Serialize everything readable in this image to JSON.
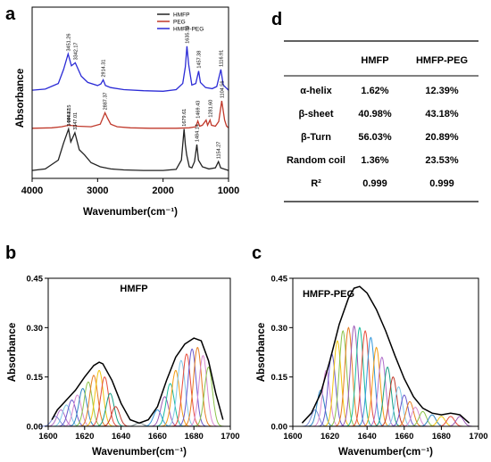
{
  "panels": {
    "a": {
      "letter": "a"
    },
    "b": {
      "letter": "b"
    },
    "c": {
      "letter": "c"
    },
    "d": {
      "letter": "d"
    }
  },
  "table": {
    "columns": [
      "",
      "HMFP",
      "HMFP-PEG"
    ],
    "rows": [
      [
        "α-helix",
        "1.62%",
        "12.39%"
      ],
      [
        "β-sheet",
        "40.98%",
        "43.18%"
      ],
      [
        "β-Turn",
        "56.03%",
        "20.89%"
      ],
      [
        "Random coil",
        "1.36%",
        "23.53%"
      ],
      [
        "R²",
        "0.999",
        "0.999"
      ]
    ]
  },
  "chart_data": [
    {
      "panel": "a",
      "type": "line",
      "xlabel": "Wavenumber(cm⁻¹)",
      "ylabel": "Absorbance",
      "xlim": [
        4000,
        1000
      ],
      "x_reversed": true,
      "xticks": [
        4000,
        3000,
        2000,
        1000
      ],
      "yticks": [],
      "legend": {
        "placement": "top-right",
        "entries": [
          "HMFP",
          "PEG",
          "HMFP-PEG"
        ]
      },
      "series": [
        {
          "name": "HMFP-PEG",
          "color": "#2b2bd6",
          "offset": 2.0,
          "x": [
            4000,
            3800,
            3600,
            3520,
            3451,
            3400,
            3342,
            3250,
            3150,
            3000,
            2950,
            2914,
            2880,
            2800,
            2600,
            2300,
            2000,
            1800,
            1700,
            1660,
            1635,
            1610,
            1560,
            1500,
            1457,
            1430,
            1350,
            1250,
            1180,
            1117,
            1080,
            1000
          ],
          "y": [
            0.05,
            0.07,
            0.18,
            0.45,
            0.75,
            0.52,
            0.58,
            0.32,
            0.2,
            0.14,
            0.17,
            0.25,
            0.14,
            0.1,
            0.06,
            0.04,
            0.03,
            0.06,
            0.18,
            0.5,
            0.9,
            0.55,
            0.15,
            0.18,
            0.42,
            0.2,
            0.1,
            0.08,
            0.12,
            0.45,
            0.15,
            0.05
          ]
        },
        {
          "name": "PEG",
          "color": "#c0392b",
          "offset": 1.0,
          "x": [
            4000,
            3700,
            3550,
            3441,
            3300,
            3100,
            2960,
            2900,
            2887,
            2850,
            2800,
            2700,
            2500,
            2200,
            1800,
            1600,
            1500,
            1469,
            1440,
            1400,
            1342,
            1320,
            1282,
            1260,
            1200,
            1150,
            1104,
            1060,
            1030,
            1000
          ],
          "y": [
            0.02,
            0.03,
            0.05,
            0.08,
            0.06,
            0.05,
            0.1,
            0.28,
            0.32,
            0.22,
            0.1,
            0.05,
            0.03,
            0.02,
            0.02,
            0.03,
            0.05,
            0.16,
            0.06,
            0.08,
            0.18,
            0.08,
            0.18,
            0.08,
            0.06,
            0.15,
            0.55,
            0.18,
            0.06,
            0.03
          ]
        },
        {
          "name": "HMFP",
          "color": "#222222",
          "offset": 0.0,
          "x": [
            4000,
            3800,
            3600,
            3520,
            3444,
            3410,
            3347,
            3280,
            3200,
            3100,
            2960,
            2800,
            2600,
            2300,
            2000,
            1800,
            1720,
            1679,
            1660,
            1640,
            1600,
            1560,
            1520,
            1484,
            1460,
            1400,
            1300,
            1200,
            1154,
            1120,
            1000
          ],
          "y": [
            0.05,
            0.08,
            0.25,
            0.58,
            0.85,
            0.6,
            0.78,
            0.45,
            0.35,
            0.2,
            0.12,
            0.08,
            0.06,
            0.05,
            0.05,
            0.07,
            0.25,
            0.85,
            0.55,
            0.35,
            0.12,
            0.1,
            0.22,
            0.55,
            0.25,
            0.12,
            0.08,
            0.1,
            0.22,
            0.1,
            0.05
          ]
        }
      ],
      "annotations": [
        {
          "text": "3451.26",
          "x": 3451,
          "series": "HMFP-PEG"
        },
        {
          "text": "3342.17",
          "x": 3342,
          "series": "HMFP-PEG"
        },
        {
          "text": "2914.31",
          "x": 2914,
          "series": "HMFP-PEG"
        },
        {
          "text": "1635.33",
          "x": 1635,
          "series": "HMFP-PEG"
        },
        {
          "text": "1457.38",
          "x": 1457,
          "series": "HMFP-PEG"
        },
        {
          "text": "1116.91",
          "x": 1117,
          "series": "HMFP-PEG"
        },
        {
          "text": "3441.15",
          "x": 3441,
          "series": "PEG"
        },
        {
          "text": "2887.37",
          "x": 2887,
          "series": "PEG"
        },
        {
          "text": "1469.43",
          "x": 1469,
          "series": "PEG"
        },
        {
          "text": "1281.60",
          "x": 1282,
          "series": "PEG"
        },
        {
          "text": "1104.56",
          "x": 1104,
          "series": "PEG"
        },
        {
          "text": "3444.47",
          "x": 3444,
          "series": "HMFP"
        },
        {
          "text": "3347.01",
          "x": 3347,
          "series": "HMFP"
        },
        {
          "text": "1679.61",
          "x": 1679,
          "series": "HMFP"
        },
        {
          "text": "1484.14",
          "x": 1484,
          "series": "HMFP"
        },
        {
          "text": "1154.27",
          "x": 1154,
          "series": "HMFP"
        }
      ]
    },
    {
      "panel": "b",
      "type": "line",
      "title": "HMFP",
      "xlabel": "Wavenumber(cm⁻¹)",
      "ylabel": "Absorbance",
      "xlim": [
        1600,
        1700
      ],
      "ylim": [
        0,
        0.45
      ],
      "xticks": [
        1600,
        1620,
        1640,
        1660,
        1680,
        1700
      ],
      "yticks": [
        "0.00",
        "0.15",
        "0.30",
        "0.45"
      ],
      "envelope": {
        "x": [
          1602,
          1605,
          1610,
          1615,
          1620,
          1625,
          1628,
          1630,
          1635,
          1640,
          1645,
          1650,
          1655,
          1660,
          1665,
          1670,
          1675,
          1680,
          1684,
          1688,
          1692,
          1696
        ],
        "y": [
          0.02,
          0.05,
          0.08,
          0.11,
          0.15,
          0.185,
          0.195,
          0.19,
          0.14,
          0.07,
          0.02,
          0.01,
          0.02,
          0.06,
          0.14,
          0.21,
          0.25,
          0.268,
          0.26,
          0.2,
          0.1,
          0.02
        ]
      },
      "components": [
        {
          "center": 1604,
          "height": 0.03,
          "width": 2.2,
          "color": "#7a8dd6"
        },
        {
          "center": 1607,
          "height": 0.05,
          "width": 2.2,
          "color": "#b06ec9"
        },
        {
          "center": 1610,
          "height": 0.065,
          "width": 2.2,
          "color": "#7fc8e8"
        },
        {
          "center": 1613,
          "height": 0.08,
          "width": 2.2,
          "color": "#6a5acd"
        },
        {
          "center": 1616,
          "height": 0.095,
          "width": 2.2,
          "color": "#d98ad0"
        },
        {
          "center": 1619,
          "height": 0.115,
          "width": 2.2,
          "color": "#2e86c1"
        },
        {
          "center": 1622,
          "height": 0.135,
          "width": 2.2,
          "color": "#8bc34a"
        },
        {
          "center": 1625,
          "height": 0.155,
          "width": 2.2,
          "color": "#e67e22"
        },
        {
          "center": 1628,
          "height": 0.17,
          "width": 2.2,
          "color": "#f1c40f"
        },
        {
          "center": 1631,
          "height": 0.15,
          "width": 2.2,
          "color": "#e74c3c"
        },
        {
          "center": 1634,
          "height": 0.1,
          "width": 2.2,
          "color": "#16a085"
        },
        {
          "center": 1637,
          "height": 0.06,
          "width": 2.2,
          "color": "#c0392b"
        },
        {
          "center": 1650,
          "height": 0.01,
          "width": 2.2,
          "color": "#7f8c8d"
        },
        {
          "center": 1660,
          "height": 0.05,
          "width": 2.2,
          "color": "#3498db"
        },
        {
          "center": 1664,
          "height": 0.09,
          "width": 2.2,
          "color": "#9b59b6"
        },
        {
          "center": 1667,
          "height": 0.13,
          "width": 2.2,
          "color": "#1abc9c"
        },
        {
          "center": 1670,
          "height": 0.17,
          "width": 2.2,
          "color": "#f39c12"
        },
        {
          "center": 1673,
          "height": 0.2,
          "width": 2.2,
          "color": "#7fc8e8"
        },
        {
          "center": 1676,
          "height": 0.22,
          "width": 2.2,
          "color": "#e74c3c"
        },
        {
          "center": 1679,
          "height": 0.235,
          "width": 2.2,
          "color": "#6a5acd"
        },
        {
          "center": 1682,
          "height": 0.24,
          "width": 2.2,
          "color": "#e67e22"
        },
        {
          "center": 1685,
          "height": 0.215,
          "width": 2.2,
          "color": "#d98ad0"
        },
        {
          "center": 1688,
          "height": 0.18,
          "width": 2.2,
          "color": "#8bc34a"
        }
      ]
    },
    {
      "panel": "c",
      "type": "line",
      "title": "HMFP-PEG",
      "xlabel": "Wavenumber(cm⁻¹)",
      "ylabel": "Absorbance",
      "xlim": [
        1600,
        1700
      ],
      "ylim": [
        0,
        0.45
      ],
      "xticks": [
        1600,
        1620,
        1640,
        1660,
        1680,
        1700
      ],
      "yticks": [
        "0.00",
        "0.15",
        "0.30",
        "0.45"
      ],
      "envelope": {
        "x": [
          1605,
          1610,
          1615,
          1620,
          1625,
          1630,
          1633,
          1636,
          1640,
          1645,
          1650,
          1655,
          1660,
          1665,
          1670,
          1675,
          1680,
          1685,
          1690,
          1695
        ],
        "y": [
          0.01,
          0.04,
          0.1,
          0.2,
          0.31,
          0.39,
          0.42,
          0.425,
          0.405,
          0.355,
          0.29,
          0.215,
          0.145,
          0.09,
          0.055,
          0.04,
          0.035,
          0.04,
          0.035,
          0.01
        ]
      },
      "components": [
        {
          "center": 1612,
          "height": 0.05,
          "width": 2.0,
          "color": "#7a8dd6"
        },
        {
          "center": 1615,
          "height": 0.11,
          "width": 2.0,
          "color": "#2e86c1"
        },
        {
          "center": 1618,
          "height": 0.17,
          "width": 2.0,
          "color": "#d98ad0"
        },
        {
          "center": 1621,
          "height": 0.22,
          "width": 2.0,
          "color": "#6a5acd"
        },
        {
          "center": 1624,
          "height": 0.26,
          "width": 2.0,
          "color": "#f1c40f"
        },
        {
          "center": 1627,
          "height": 0.29,
          "width": 2.0,
          "color": "#8bc34a"
        },
        {
          "center": 1630,
          "height": 0.3,
          "width": 2.0,
          "color": "#e67e22"
        },
        {
          "center": 1633,
          "height": 0.305,
          "width": 2.0,
          "color": "#9b59b6"
        },
        {
          "center": 1636,
          "height": 0.3,
          "width": 2.0,
          "color": "#1abc9c"
        },
        {
          "center": 1639,
          "height": 0.29,
          "width": 2.0,
          "color": "#e74c3c"
        },
        {
          "center": 1642,
          "height": 0.27,
          "width": 2.0,
          "color": "#3498db"
        },
        {
          "center": 1645,
          "height": 0.24,
          "width": 2.0,
          "color": "#f39c12"
        },
        {
          "center": 1648,
          "height": 0.21,
          "width": 2.0,
          "color": "#b06ec9"
        },
        {
          "center": 1651,
          "height": 0.18,
          "width": 2.0,
          "color": "#16a085"
        },
        {
          "center": 1654,
          "height": 0.15,
          "width": 2.0,
          "color": "#c0392b"
        },
        {
          "center": 1657,
          "height": 0.12,
          "width": 2.0,
          "color": "#7fc8e8"
        },
        {
          "center": 1660,
          "height": 0.095,
          "width": 2.0,
          "color": "#6a5acd"
        },
        {
          "center": 1663,
          "height": 0.075,
          "width": 2.0,
          "color": "#e67e22"
        },
        {
          "center": 1666,
          "height": 0.058,
          "width": 2.0,
          "color": "#d98ad0"
        },
        {
          "center": 1670,
          "height": 0.045,
          "width": 2.0,
          "color": "#8bc34a"
        },
        {
          "center": 1675,
          "height": 0.035,
          "width": 2.0,
          "color": "#2e86c1"
        },
        {
          "center": 1680,
          "height": 0.03,
          "width": 2.0,
          "color": "#f1c40f"
        },
        {
          "center": 1685,
          "height": 0.03,
          "width": 2.0,
          "color": "#e74c3c"
        },
        {
          "center": 1690,
          "height": 0.03,
          "width": 2.0,
          "color": "#9b59b6"
        }
      ]
    }
  ]
}
